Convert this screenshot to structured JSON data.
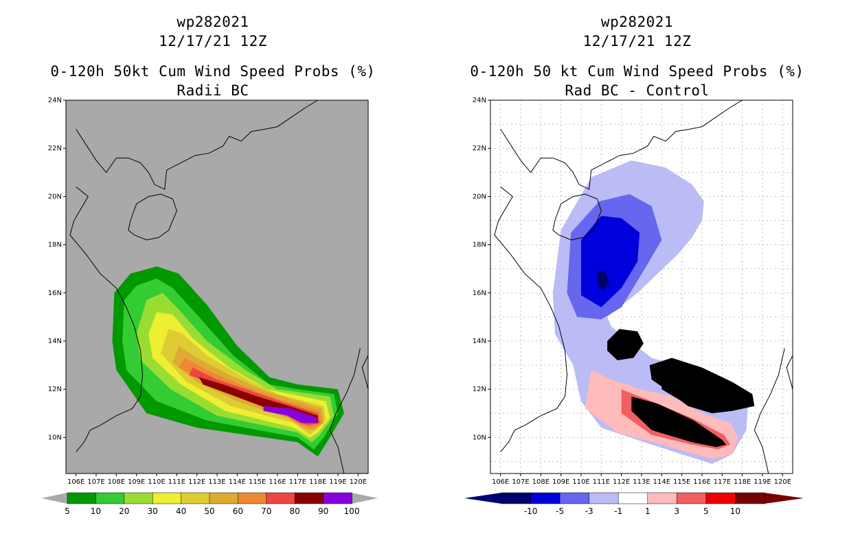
{
  "left_panel": {
    "storm_id": "wp282021",
    "datetime": "12/17/21 12Z",
    "title": "0-120h 50kt Cum Wind Speed Probs (%)",
    "subtitle": "Radii BC"
  },
  "right_panel": {
    "storm_id": "wp282021",
    "datetime": "12/17/21 12Z",
    "title": "0-120h 50 kt Cum Wind Speed Probs (%)",
    "subtitle": "Rad BC - Control"
  },
  "chart_data": [
    {
      "type": "heatmap",
      "title": "0-120h 50kt Cum Wind Speed Probs (%)",
      "subtitle": "Radii BC",
      "xlabel": "",
      "ylabel": "",
      "x_ticks": [
        "106E",
        "107E",
        "108E",
        "109E",
        "110E",
        "111E",
        "112E",
        "113E",
        "114E",
        "115E",
        "116E",
        "117E",
        "118E",
        "119E",
        "120E"
      ],
      "y_ticks": [
        "10N",
        "12N",
        "14N",
        "16N",
        "18N",
        "20N",
        "22N",
        "24N"
      ],
      "xlim": [
        105.5,
        120.5
      ],
      "ylim": [
        8.5,
        24
      ],
      "grid": false,
      "background_color": "#a9a9a9",
      "colorbar": {
        "labels": [
          "5",
          "10",
          "20",
          "30",
          "40",
          "50",
          "60",
          "70",
          "80",
          "90",
          "100"
        ],
        "colors": [
          "#009900",
          "#33cc33",
          "#99dd33",
          "#eeee33",
          "#ddcc33",
          "#ddaa33",
          "#ee8833",
          "#ee4444",
          "#880000",
          "#8800dd"
        ]
      },
      "contour_levels": [
        5,
        10,
        20,
        30,
        40,
        50,
        60,
        70,
        80,
        90
      ],
      "contour_colors": [
        "#009900",
        "#33cc33",
        "#99dd33",
        "#eeee33",
        "#ddcc33",
        "#ddaa33",
        "#ee8833",
        "#ee4444",
        "#880000",
        "#8800dd"
      ],
      "contours": [
        [
          [
            108.7,
            16.8
          ],
          [
            110.0,
            17.1
          ],
          [
            111.1,
            16.8
          ],
          [
            112.5,
            15.5
          ],
          [
            114.0,
            13.8
          ],
          [
            115.6,
            12.5
          ],
          [
            117.0,
            12.2
          ],
          [
            119.0,
            12.0
          ],
          [
            119.3,
            11.0
          ],
          [
            118.6,
            10.0
          ],
          [
            118.0,
            9.2
          ],
          [
            117.0,
            9.8
          ],
          [
            112.0,
            10.4
          ],
          [
            109.5,
            11.0
          ],
          [
            108.0,
            12.8
          ],
          [
            107.8,
            14.0
          ],
          [
            107.9,
            16.0
          ]
        ],
        [
          [
            109.0,
            16.3
          ],
          [
            110.0,
            16.6
          ],
          [
            110.8,
            16.2
          ],
          [
            112.0,
            15.1
          ],
          [
            113.8,
            13.4
          ],
          [
            115.6,
            12.2
          ],
          [
            117.0,
            12.0
          ],
          [
            118.8,
            11.8
          ],
          [
            119.0,
            11.0
          ],
          [
            118.3,
            10.0
          ],
          [
            117.8,
            9.5
          ],
          [
            117.0,
            10.0
          ],
          [
            112.5,
            10.7
          ],
          [
            110.0,
            11.5
          ],
          [
            108.5,
            12.8
          ],
          [
            108.3,
            14.0
          ],
          [
            108.4,
            15.7
          ]
        ],
        [
          [
            109.5,
            15.7
          ],
          [
            110.3,
            16.0
          ],
          [
            111.0,
            15.4
          ],
          [
            112.5,
            14.0
          ],
          [
            114.4,
            12.8
          ],
          [
            116.0,
            12.0
          ],
          [
            118.6,
            11.7
          ],
          [
            118.8,
            10.9
          ],
          [
            118.1,
            10.1
          ],
          [
            117.7,
            9.8
          ],
          [
            117.0,
            10.2
          ],
          [
            113.0,
            10.9
          ],
          [
            110.7,
            12.0
          ],
          [
            109.2,
            13.2
          ],
          [
            109.0,
            14.3
          ]
        ],
        [
          [
            110.0,
            15.2
          ],
          [
            110.8,
            15.1
          ],
          [
            111.8,
            14.1
          ],
          [
            113.6,
            12.9
          ],
          [
            115.5,
            12.0
          ],
          [
            118.4,
            11.5
          ],
          [
            118.6,
            10.8
          ],
          [
            118.0,
            10.2
          ],
          [
            117.6,
            10.0
          ],
          [
            116.8,
            10.4
          ],
          [
            113.4,
            11.1
          ],
          [
            111.2,
            12.2
          ],
          [
            109.8,
            13.3
          ],
          [
            109.6,
            14.3
          ]
        ],
        [
          [
            110.6,
            14.5
          ],
          [
            111.3,
            14.3
          ],
          [
            112.5,
            13.4
          ],
          [
            114.5,
            12.4
          ],
          [
            116.0,
            11.8
          ],
          [
            118.3,
            11.3
          ],
          [
            118.4,
            10.7
          ],
          [
            117.9,
            10.3
          ],
          [
            117.6,
            10.1
          ],
          [
            116.8,
            10.6
          ],
          [
            113.7,
            11.3
          ],
          [
            111.5,
            12.3
          ],
          [
            110.2,
            13.5
          ]
        ],
        [
          [
            111.1,
            13.8
          ],
          [
            112.0,
            13.3
          ],
          [
            113.6,
            12.6
          ],
          [
            115.5,
            11.9
          ],
          [
            118.2,
            11.2
          ],
          [
            118.3,
            10.6
          ],
          [
            117.8,
            10.3
          ],
          [
            117.5,
            10.3
          ],
          [
            116.5,
            10.8
          ],
          [
            114.0,
            11.5
          ],
          [
            112.0,
            12.3
          ],
          [
            110.8,
            13.1
          ]
        ],
        [
          [
            111.4,
            13.3
          ],
          [
            112.5,
            12.8
          ],
          [
            114.4,
            12.1
          ],
          [
            116.0,
            11.6
          ],
          [
            118.1,
            11.1
          ],
          [
            118.2,
            10.6
          ],
          [
            117.7,
            10.4
          ],
          [
            117.2,
            10.5
          ],
          [
            116.4,
            10.9
          ],
          [
            114.2,
            11.6
          ],
          [
            112.3,
            12.4
          ],
          [
            111.1,
            12.9
          ]
        ],
        [
          [
            111.8,
            12.9
          ],
          [
            113.0,
            12.4
          ],
          [
            114.8,
            11.9
          ],
          [
            116.5,
            11.4
          ],
          [
            118.0,
            11.0
          ],
          [
            118.1,
            10.6
          ],
          [
            117.6,
            10.5
          ],
          [
            117.1,
            10.6
          ],
          [
            116.3,
            11.0
          ],
          [
            114.3,
            11.7
          ],
          [
            112.5,
            12.3
          ],
          [
            111.6,
            12.6
          ]
        ],
        [
          [
            112.1,
            12.5
          ],
          [
            113.3,
            12.2
          ],
          [
            115.0,
            11.7
          ],
          [
            116.6,
            11.3
          ],
          [
            118.0,
            10.9
          ],
          [
            118.0,
            10.6
          ],
          [
            117.4,
            10.6
          ],
          [
            116.7,
            10.9
          ],
          [
            115.2,
            11.3
          ],
          [
            113.6,
            11.8
          ],
          [
            112.3,
            12.2
          ]
        ],
        [
          [
            115.3,
            11.3
          ],
          [
            116.6,
            11.2
          ],
          [
            118.0,
            10.8
          ],
          [
            117.9,
            10.6
          ],
          [
            117.2,
            10.6
          ],
          [
            116.5,
            10.9
          ],
          [
            115.3,
            11.1
          ]
        ]
      ]
    },
    {
      "type": "heatmap",
      "title": "0-120h 50 kt Cum Wind Speed Probs (%)",
      "subtitle": "Rad BC - Control",
      "xlabel": "",
      "ylabel": "",
      "x_ticks": [
        "106E",
        "107E",
        "108E",
        "109E",
        "110E",
        "111E",
        "112E",
        "113E",
        "114E",
        "115E",
        "116E",
        "117E",
        "118E",
        "119E",
        "120E"
      ],
      "y_ticks": [
        "10N",
        "12N",
        "14N",
        "16N",
        "18N",
        "20N",
        "22N",
        "24N"
      ],
      "xlim": [
        105.5,
        120.5
      ],
      "ylim": [
        8.5,
        24
      ],
      "grid": true,
      "background_color": "#ffffff",
      "colorbar": {
        "labels": [
          "-10",
          "-5",
          "-3",
          "-1",
          "1",
          "3",
          "5",
          "10"
        ],
        "colors": [
          "#000070",
          "#0000dd",
          "#6666ee",
          "#bbbbf5",
          "#ffffff",
          "#ffbbbb",
          "#f06060",
          "#ee0000",
          "#770000"
        ]
      },
      "contour_levels": [
        -1,
        -3,
        -5,
        -10,
        1,
        3
      ],
      "contour_colors": [
        "#bbbbf5",
        "#6666ee",
        "#0000dd",
        "#000070",
        "#ffbbbb",
        "#f06060"
      ],
      "contours": [
        [
          [
            109.0,
            18.6
          ],
          [
            110.5,
            20.8
          ],
          [
            112.5,
            21.5
          ],
          [
            114.2,
            21.2
          ],
          [
            115.5,
            20.5
          ],
          [
            116.1,
            19.8
          ],
          [
            116.0,
            19.0
          ],
          [
            115.5,
            18.3
          ],
          [
            114.8,
            17.6
          ],
          [
            112.8,
            16.0
          ],
          [
            111.3,
            15.0
          ],
          [
            111.5,
            14.6
          ],
          [
            113.5,
            13.3
          ],
          [
            115.5,
            12.8
          ],
          [
            117.0,
            12.3
          ],
          [
            118.3,
            11.6
          ],
          [
            118.2,
            10.3
          ],
          [
            117.5,
            9.3
          ],
          [
            116.5,
            8.9
          ],
          [
            113.5,
            9.7
          ],
          [
            111.0,
            10.4
          ],
          [
            110.0,
            11.5
          ],
          [
            109.6,
            13.0
          ],
          [
            108.7,
            14.3
          ],
          [
            108.6,
            16.0
          ]
        ],
        [
          [
            109.5,
            18.5
          ],
          [
            110.9,
            19.8
          ],
          [
            112.4,
            20.1
          ],
          [
            113.5,
            19.6
          ],
          [
            114.0,
            18.2
          ],
          [
            113.3,
            17.2
          ],
          [
            112.0,
            15.4
          ],
          [
            111.0,
            14.9
          ],
          [
            109.8,
            15.0
          ],
          [
            109.3,
            16.0
          ]
        ],
        [
          [
            110.0,
            18.2
          ],
          [
            111.0,
            19.2
          ],
          [
            112.0,
            19.1
          ],
          [
            112.9,
            18.5
          ],
          [
            112.8,
            17.3
          ],
          [
            112.0,
            16.2
          ],
          [
            111.0,
            15.4
          ],
          [
            110.0,
            15.9
          ]
        ],
        [
          [
            110.8,
            16.9
          ],
          [
            111.2,
            16.9
          ],
          [
            111.4,
            16.4
          ],
          [
            111.1,
            16.1
          ],
          [
            110.8,
            16.3
          ]
        ],
        [
          [
            110.5,
            12.8
          ],
          [
            111.5,
            12.4
          ],
          [
            113.0,
            12.0
          ],
          [
            114.5,
            11.7
          ],
          [
            116.0,
            11.0
          ],
          [
            117.4,
            10.6
          ],
          [
            117.8,
            10.0
          ],
          [
            117.5,
            9.3
          ],
          [
            116.5,
            9.1
          ],
          [
            114.0,
            9.7
          ],
          [
            111.8,
            10.2
          ],
          [
            110.2,
            11.2
          ]
        ],
        [
          [
            112.0,
            12.0
          ],
          [
            113.5,
            11.5
          ],
          [
            115.5,
            10.8
          ],
          [
            117.1,
            10.1
          ],
          [
            117.4,
            9.7
          ],
          [
            116.8,
            9.5
          ],
          [
            115.5,
            9.7
          ],
          [
            113.5,
            10.1
          ],
          [
            112.0,
            11.0
          ]
        ],
        [
          [
            112.5,
            11.7
          ],
          [
            113.8,
            11.4
          ],
          [
            115.6,
            10.7
          ],
          [
            117.0,
            9.9
          ],
          [
            117.2,
            9.7
          ],
          [
            116.7,
            9.6
          ],
          [
            115.5,
            9.8
          ],
          [
            113.5,
            10.3
          ],
          [
            112.5,
            11.1
          ]
        ],
        [
          [
            113.4,
            13.0
          ],
          [
            114.5,
            13.3
          ],
          [
            116.0,
            12.9
          ],
          [
            117.5,
            12.3
          ],
          [
            118.5,
            11.8
          ],
          [
            118.6,
            11.3
          ],
          [
            117.5,
            11.1
          ],
          [
            116.5,
            11.0
          ],
          [
            115.3,
            11.3
          ],
          [
            114.2,
            12.0
          ],
          [
            113.5,
            12.4
          ]
        ],
        [
          [
            114.0,
            12.6
          ],
          [
            115.2,
            12.9
          ],
          [
            116.5,
            12.5
          ],
          [
            117.8,
            12.0
          ],
          [
            118.4,
            11.6
          ],
          [
            118.2,
            11.3
          ],
          [
            117.3,
            11.2
          ],
          [
            116.3,
            11.2
          ],
          [
            115.0,
            11.5
          ],
          [
            114.0,
            12.0
          ]
        ],
        [
          [
            114.4,
            12.5
          ],
          [
            115.5,
            12.6
          ],
          [
            116.8,
            12.2
          ],
          [
            118.0,
            11.8
          ],
          [
            118.2,
            11.5
          ],
          [
            117.5,
            11.3
          ],
          [
            116.2,
            11.4
          ],
          [
            114.8,
            11.7
          ],
          [
            114.3,
            12.1
          ]
        ],
        [
          [
            111.3,
            14.0
          ],
          [
            111.9,
            14.5
          ],
          [
            112.8,
            14.4
          ],
          [
            113.1,
            13.9
          ],
          [
            112.6,
            13.3
          ],
          [
            111.8,
            13.2
          ],
          [
            111.3,
            13.6
          ]
        ],
        [
          [
            111.6,
            13.9
          ],
          [
            112.1,
            14.2
          ],
          [
            112.3,
            13.8
          ],
          [
            112.0,
            13.5
          ],
          [
            111.7,
            13.6
          ]
        ]
      ]
    }
  ]
}
